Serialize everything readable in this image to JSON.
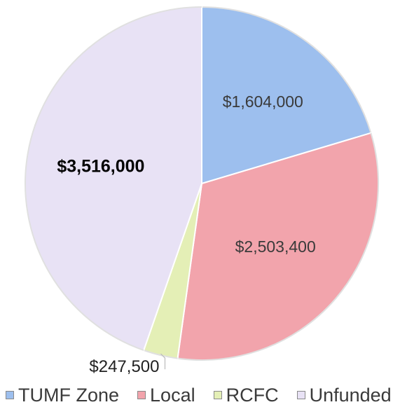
{
  "chart_data": {
    "type": "pie",
    "title": "",
    "slices": [
      {
        "name": "TUMF Zone",
        "value": 1604000,
        "label": "$1,604,000",
        "color": "#9dbfee",
        "label_bold": false
      },
      {
        "name": "Local",
        "value": 2503400,
        "label": "$2,503,400",
        "color": "#f2a4ac",
        "label_bold": false
      },
      {
        "name": "RCFC",
        "value": 247500,
        "label": "$247,500",
        "color": "#e4efb6",
        "label_bold": false
      },
      {
        "name": "Unfunded",
        "value": 3516000,
        "label": "$3,516,000",
        "color": "#e8e2f5",
        "label_bold": true
      }
    ],
    "legend_position": "bottom",
    "start_angle_deg": 0,
    "direction": "clockwise"
  }
}
